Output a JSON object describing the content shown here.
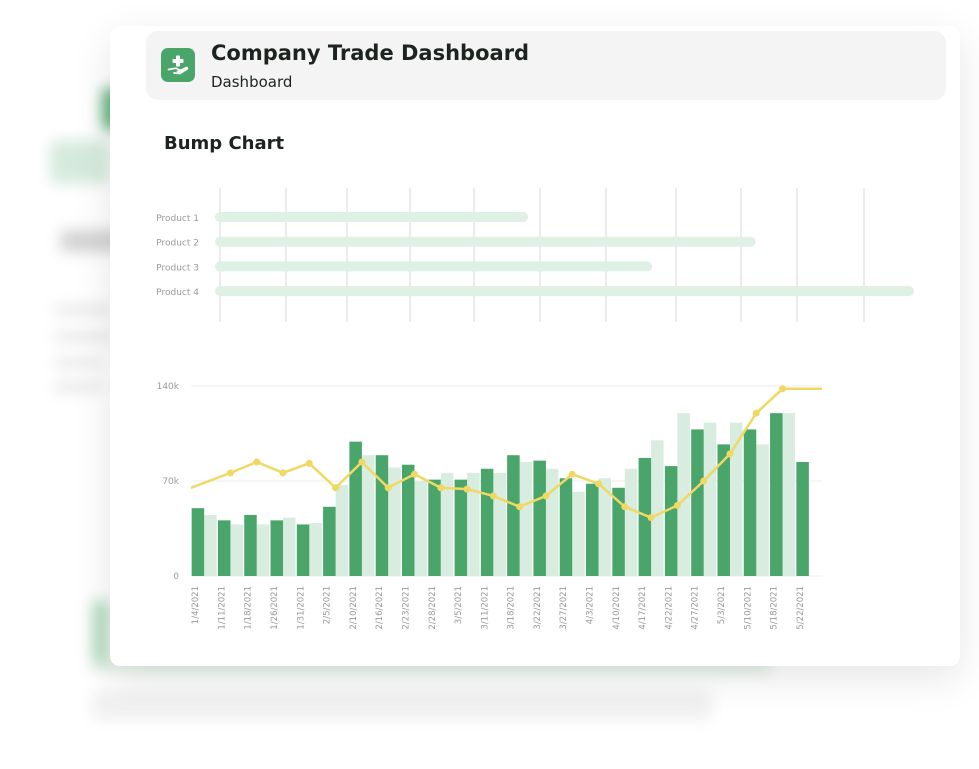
{
  "app": {
    "title": "Company Trade Dashboard",
    "subtitle": "Dashboard",
    "logo_icon": "hand-plus-icon"
  },
  "section": {
    "title": "Bump Chart"
  },
  "colors": {
    "accent": "#4aa56a",
    "accent_light": "#d8ecdf",
    "line": "#f0d864",
    "grid": "#ececec",
    "bar_track": "#dff0e4",
    "text_muted": "#999999"
  },
  "chart_data": [
    {
      "type": "bar",
      "orientation": "horizontal",
      "categories": [
        "Product 1",
        "Product 2",
        "Product 3",
        "Product 4"
      ],
      "values": [
        0.44,
        0.77,
        0.62,
        1.0
      ],
      "grid": true
    },
    {
      "type": "bar",
      "categories": [
        "1/4/2021",
        "1/11/2021",
        "1/18/2021",
        "1/26/2021",
        "1/31/2021",
        "2/5/2021",
        "2/10/2021",
        "2/16/2021",
        "2/23/2021",
        "2/28/2021",
        "3/5/2021",
        "3/11/2021",
        "3/18/2021",
        "3/22/2021",
        "3/27/2021",
        "4/3/2021",
        "4/10/2021",
        "4/17/2021",
        "4/22/2021",
        "4/27/2021",
        "5/3/2021",
        "5/10/2021",
        "5/18/2021",
        "5/22/2021"
      ],
      "series": [
        {
          "kind": "bar",
          "values": [
            50000,
            41000,
            45000,
            41000,
            38000,
            51000,
            99000,
            89000,
            82000,
            71000,
            71000,
            79000,
            89000,
            85000,
            72000,
            68000,
            65000,
            87000,
            81000,
            108000,
            97000,
            108000,
            120000,
            84000
          ]
        },
        {
          "kind": "bar",
          "values": [
            45000,
            38000,
            38000,
            43000,
            39000,
            67000,
            89000,
            80000,
            70000,
            76000,
            76000,
            76000,
            84000,
            79000,
            62000,
            72000,
            79000,
            100000,
            120000,
            113000,
            113000,
            97000,
            120000,
            0
          ]
        },
        {
          "kind": "line",
          "values": [
            65000,
            76000,
            84000,
            76000,
            83000,
            65000,
            84000,
            65000,
            75000,
            65000,
            64000,
            59000,
            51000,
            59000,
            75000,
            68000,
            51000,
            43000,
            52000,
            70000,
            90000,
            120000,
            138000,
            138000
          ]
        }
      ],
      "yticks": [
        "0",
        "70k",
        "140k"
      ],
      "ylim": [
        0,
        140000
      ],
      "grid": true,
      "legend": "none"
    }
  ]
}
